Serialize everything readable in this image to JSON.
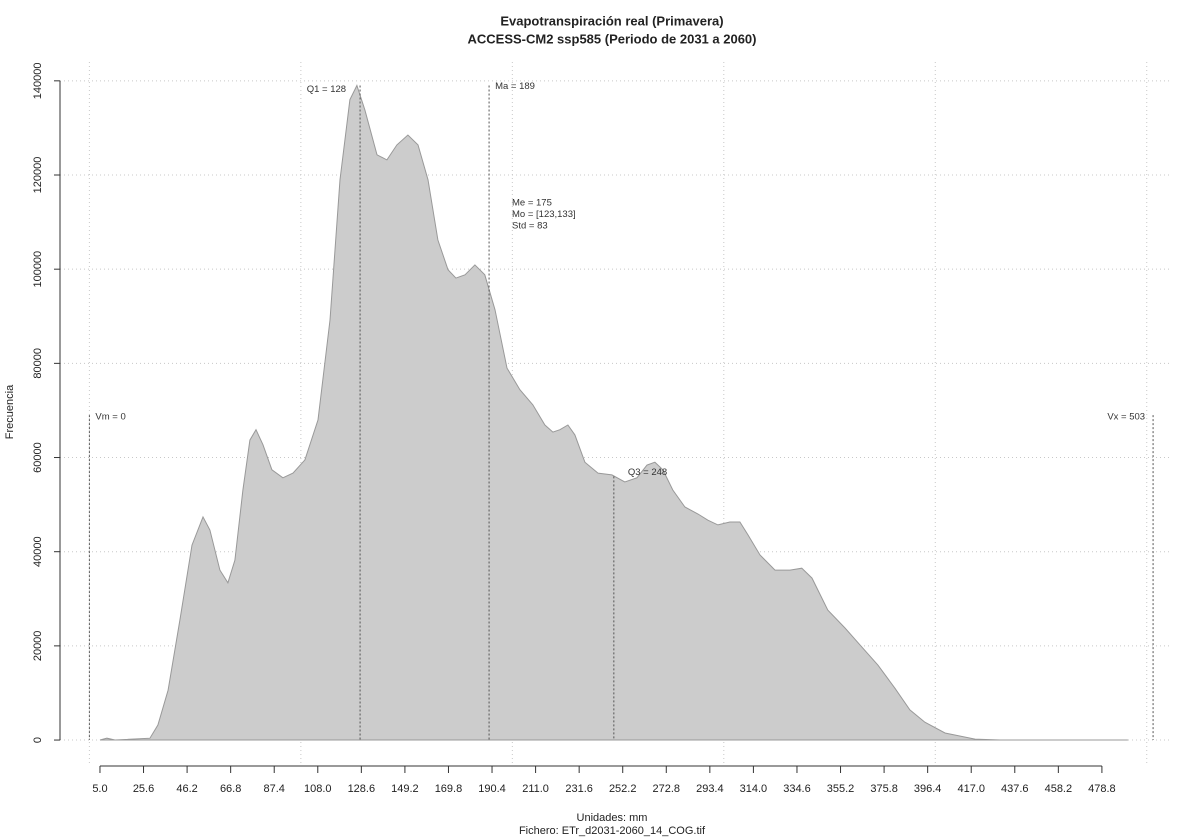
{
  "chart_data": {
    "type": "area",
    "title": "Evapotranspiración real (Primavera)",
    "subtitle": "ACCESS-CM2 ssp585 (Periodo de 2031 a 2060)",
    "xlabel": "Unidades: mm",
    "caption": "Fichero: ETr_d2031-2060_14_COG.tif",
    "ylabel": "Frecuencia",
    "color": "#cccccc",
    "edge_color": "#999999",
    "x": [
      5.0,
      8.3,
      12.1,
      28.6,
      32.4,
      37.2,
      42.8,
      48.5,
      53.7,
      57.0,
      61.7,
      65.5,
      68.8,
      72.6,
      75.9,
      78.8,
      82.1,
      86.3,
      91.5,
      96.3,
      101.9,
      108.1,
      113.8,
      118.5,
      123.2,
      126.5,
      130.3,
      136.0,
      140.7,
      145.4,
      150.6,
      155.4,
      160.1,
      164.8,
      169.6,
      173.3,
      177.6,
      182.3,
      187.0,
      191.8,
      197.5,
      203.6,
      209.7,
      215.4,
      219.2,
      222.5,
      226.3,
      229.6,
      234.3,
      240.5,
      247.1,
      253.2,
      258.9,
      263.7,
      267.4,
      271.2,
      275.9,
      281.6,
      287.8,
      292.5,
      297.2,
      302.9,
      307.6,
      311.4,
      317.1,
      324.2,
      331.3,
      336.9,
      341.7,
      349.2,
      357.3,
      364.4,
      372.9,
      380.9,
      388.0,
      395.1,
      404.6,
      418.8,
      430.6,
      491.1
    ],
    "values": [
      0,
      400,
      0,
      400,
      3200,
      10600,
      25500,
      41400,
      47400,
      44600,
      36100,
      33400,
      38200,
      53100,
      63700,
      65900,
      62700,
      57400,
      55700,
      56700,
      59500,
      68000,
      89200,
      119000,
      136000,
      139000,
      133800,
      124300,
      123200,
      126400,
      128500,
      126400,
      119000,
      106200,
      99900,
      98100,
      98800,
      100900,
      98800,
      91400,
      79000,
      74400,
      71200,
      66900,
      65400,
      65900,
      66900,
      64800,
      59000,
      56700,
      56300,
      54800,
      55700,
      58400,
      59000,
      57400,
      53100,
      49500,
      48000,
      46700,
      45700,
      46300,
      46300,
      43600,
      39300,
      36100,
      36100,
      36500,
      34400,
      27600,
      23800,
      20200,
      15900,
      11000,
      6400,
      3800,
      1500,
      200,
      0,
      0
    ],
    "xlim": [
      -13.9,
      511
    ],
    "ylim": [
      -5300,
      144000
    ],
    "xticks": [
      {
        "value": 5.0,
        "label": "5.0"
      },
      25.6,
      46.2,
      66.8,
      87.4,
      {
        "value": 108.0,
        "label": "108.0"
      },
      128.6,
      149.2,
      169.8,
      190.4,
      {
        "value": 211.0,
        "label": "211.0"
      },
      231.6,
      252.2,
      272.8,
      293.4,
      {
        "value": 314.0,
        "label": "314.0"
      },
      334.6,
      355.2,
      375.8,
      396.4,
      {
        "value": 417.0,
        "label": "417.0"
      },
      437.6,
      458.2,
      478.8
    ],
    "yticks": [
      0,
      20000,
      40000,
      60000,
      80000,
      100000,
      120000,
      140000
    ],
    "xgrid": [
      0,
      100,
      200,
      300,
      400,
      500
    ],
    "grid": true,
    "markers": [
      {
        "label": "Vm = 0",
        "value": 0
      },
      {
        "label": "Q1 = 128",
        "value": 128
      },
      {
        "label": "Ma = 189",
        "value": 189
      },
      {
        "label": "Q3 = 248",
        "value": 248
      },
      {
        "label": "Vx = 503",
        "value": 503
      }
    ],
    "annotations": [
      "Me = 175",
      "Mo = [123,133]",
      "Std = 83"
    ]
  }
}
